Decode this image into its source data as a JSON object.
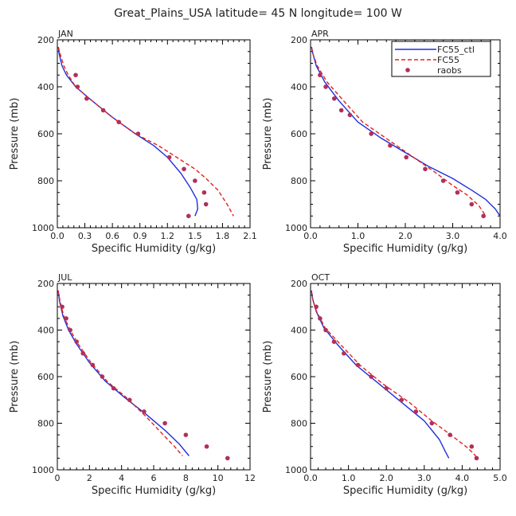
{
  "chart_data": {
    "type": "line",
    "suptitle": "Great_Plains_USA  latitude= 45 N longitude= 100 W",
    "legend": [
      {
        "name": "FC55_ctl",
        "color": "#1f2fdc",
        "style": "solid"
      },
      {
        "name": "FC55",
        "color": "#e0241f",
        "style": "dashed"
      },
      {
        "name": "raobs",
        "color": "#b0305a",
        "style": "dots"
      }
    ],
    "ylabel": "Pressure (mb)",
    "xlabel": "Specific Humidity (g/kg)",
    "ylim": [
      1000,
      200
    ],
    "panels": [
      {
        "title": "JAN",
        "xlim": [
          0,
          2.1
        ],
        "xticks": [
          "0.0",
          "0.3",
          "0.6",
          "0.9",
          "1.2",
          "1.5",
          "1.8",
          "2.1"
        ],
        "yticks": [
          "200",
          "400",
          "600",
          "800",
          "1000"
        ],
        "series": [
          {
            "name": "FC55_ctl",
            "x": [
              0.01,
              0.02,
              0.05,
              0.1,
              0.2,
              0.35,
              0.6,
              0.85,
              1.05,
              1.2,
              1.35,
              1.45,
              1.52,
              1.53,
              1.5
            ],
            "y": [
              230,
              260,
              310,
              350,
              400,
              450,
              530,
              600,
              650,
              700,
              770,
              830,
              880,
              920,
              950
            ]
          },
          {
            "name": "FC55",
            "x": [
              0.01,
              0.03,
              0.07,
              0.12,
              0.2,
              0.35,
              0.6,
              0.85,
              1.1,
              1.3,
              1.5,
              1.62,
              1.75,
              1.85,
              1.92
            ],
            "y": [
              230,
              260,
              310,
              350,
              400,
              450,
              530,
              600,
              650,
              700,
              750,
              790,
              840,
              900,
              950
            ]
          },
          {
            "name": "raobs",
            "x": [
              0.2,
              0.22,
              0.32,
              0.5,
              0.67,
              0.88,
              1.22,
              1.38,
              1.5,
              1.6,
              1.62,
              1.43
            ],
            "y": [
              350,
              400,
              450,
              500,
              550,
              600,
              700,
              750,
              800,
              850,
              900,
              950
            ]
          }
        ]
      },
      {
        "title": "APR",
        "xlim": [
          0,
          4.0
        ],
        "xticks": [
          "0.0",
          "1.0",
          "2.0",
          "3.0",
          "4.0"
        ],
        "yticks": [
          "200",
          "400",
          "600",
          "800",
          "1000"
        ],
        "series": [
          {
            "name": "FC55_ctl",
            "x": [
              0.02,
              0.05,
              0.12,
              0.3,
              0.6,
              1.0,
              1.5,
              2.0,
              2.5,
              3.0,
              3.4,
              3.7,
              3.9,
              4.0
            ],
            "y": [
              230,
              260,
              310,
              380,
              460,
              550,
              620,
              680,
              740,
              790,
              840,
              880,
              920,
              950
            ]
          },
          {
            "name": "FC55",
            "x": [
              0.02,
              0.05,
              0.14,
              0.35,
              0.7,
              1.1,
              1.6,
              2.1,
              2.6,
              3.0,
              3.3,
              3.55,
              3.7
            ],
            "y": [
              230,
              260,
              310,
              380,
              460,
              550,
              620,
              690,
              760,
              820,
              860,
              905,
              950
            ]
          },
          {
            "name": "raobs",
            "x": [
              0.2,
              0.32,
              0.5,
              0.65,
              0.83,
              1.28,
              1.68,
              2.02,
              2.42,
              2.8,
              3.1,
              3.4,
              3.65
            ],
            "y": [
              350,
              400,
              450,
              500,
              520,
              600,
              650,
              700,
              750,
              800,
              850,
              900,
              950
            ]
          }
        ]
      },
      {
        "title": "JUL",
        "xlim": [
          0,
          12
        ],
        "xticks": [
          "0",
          "2",
          "4",
          "6",
          "8",
          "10",
          "12"
        ],
        "yticks": [
          "200",
          "400",
          "600",
          "800",
          "1000"
        ],
        "series": [
          {
            "name": "FC55_ctl",
            "x": [
              0.05,
              0.15,
              0.35,
              0.7,
              1.2,
              2.0,
              3.0,
              4.2,
              5.5,
              6.7,
              7.6,
              8.2
            ],
            "y": [
              230,
              280,
              340,
              400,
              460,
              540,
              620,
              690,
              760,
              830,
              890,
              940
            ]
          },
          {
            "name": "FC55",
            "x": [
              0.05,
              0.18,
              0.4,
              0.8,
              1.3,
              2.1,
              3.1,
              4.3,
              5.5,
              6.6,
              7.3,
              7.8
            ],
            "y": [
              230,
              280,
              340,
              400,
              460,
              540,
              620,
              690,
              770,
              850,
              900,
              940
            ]
          },
          {
            "name": "raobs",
            "x": [
              0.3,
              0.55,
              0.8,
              1.2,
              1.6,
              2.2,
              2.8,
              3.5,
              4.5,
              5.4,
              6.7,
              8.0,
              9.3,
              10.6
            ],
            "y": [
              300,
              350,
              400,
              450,
              500,
              550,
              600,
              650,
              700,
              750,
              800,
              850,
              900,
              950
            ]
          }
        ]
      },
      {
        "title": "OCT",
        "xlim": [
          0,
          5.0
        ],
        "xticks": [
          "0.0",
          "1.0",
          "2.0",
          "3.0",
          "4.0",
          "5.0"
        ],
        "yticks": [
          "200",
          "400",
          "600",
          "800",
          "1000"
        ],
        "series": [
          {
            "name": "FC55_ctl",
            "x": [
              0.02,
              0.06,
              0.15,
              0.35,
              0.7,
              1.2,
              1.8,
              2.4,
              3.0,
              3.4,
              3.55,
              3.65
            ],
            "y": [
              230,
              270,
              320,
              390,
              460,
              550,
              630,
              710,
              790,
              870,
              920,
              950
            ]
          },
          {
            "name": "FC55",
            "x": [
              0.02,
              0.06,
              0.16,
              0.38,
              0.78,
              1.3,
              1.9,
              2.6,
              3.2,
              3.7,
              4.1,
              4.3,
              4.4
            ],
            "y": [
              230,
              270,
              320,
              390,
              460,
              550,
              630,
              710,
              790,
              850,
              900,
              930,
              950
            ]
          },
          {
            "name": "raobs",
            "x": [
              0.15,
              0.25,
              0.4,
              0.62,
              0.88,
              1.25,
              1.6,
              2.0,
              2.4,
              2.78,
              3.2,
              3.68,
              4.25,
              4.38
            ],
            "y": [
              300,
              350,
              400,
              450,
              500,
              550,
              600,
              650,
              700,
              750,
              800,
              850,
              900,
              950
            ]
          }
        ]
      }
    ]
  }
}
